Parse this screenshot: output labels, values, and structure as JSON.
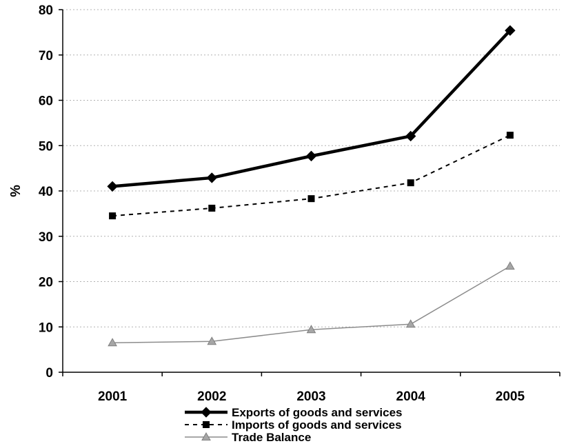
{
  "chart_data": {
    "type": "line",
    "title": "",
    "xlabel": "",
    "ylabel": "%",
    "categories": [
      "2001",
      "2002",
      "2003",
      "2004",
      "2005"
    ],
    "ylim": [
      0,
      80
    ],
    "yticks": [
      0,
      10,
      20,
      30,
      40,
      50,
      60,
      70,
      80
    ],
    "grid": true,
    "legend_position": "bottom",
    "series": [
      {
        "name": "Exports of goods and services",
        "values": [
          41.0,
          42.9,
          47.7,
          52.1,
          75.4
        ],
        "color": "#000000",
        "line_style": "solid",
        "marker": "diamond"
      },
      {
        "name": "Imports of goods and services",
        "values": [
          34.5,
          36.2,
          38.3,
          41.8,
          52.3
        ],
        "color": "#000000",
        "line_style": "dashed",
        "marker": "square"
      },
      {
        "name": "Trade Balance",
        "values": [
          6.5,
          6.8,
          9.4,
          10.6,
          23.4
        ],
        "color": "#8c8c8c",
        "line_style": "solid",
        "marker": "triangle"
      }
    ]
  }
}
